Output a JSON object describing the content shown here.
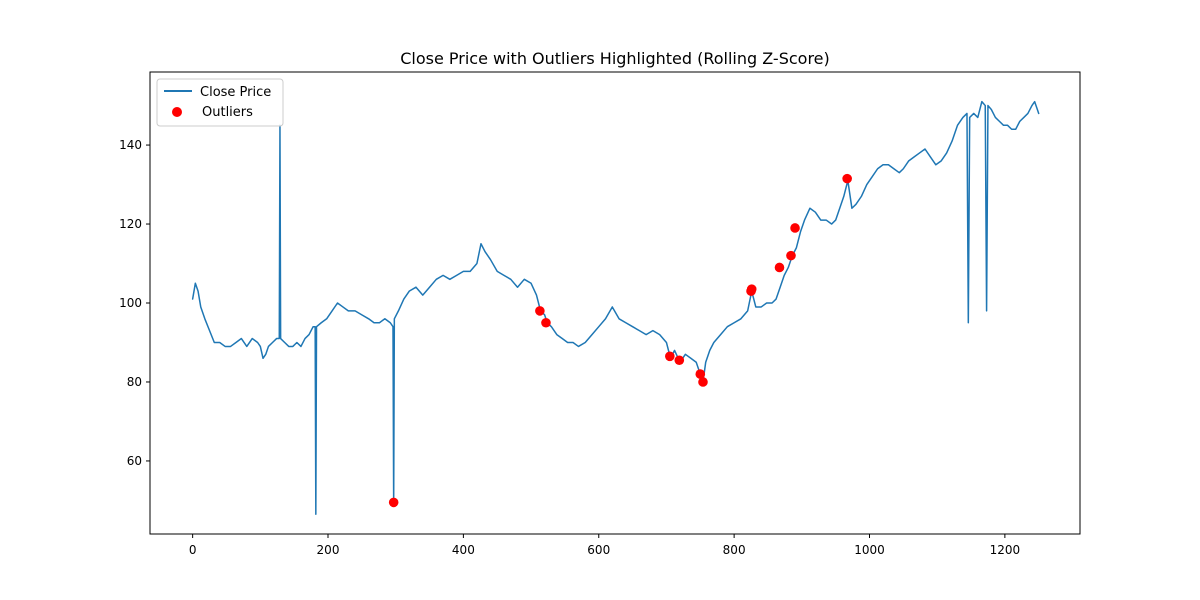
{
  "chart_data": {
    "type": "line",
    "title": "Close Price with Outliers Highlighted (Rolling Z-Score)",
    "xlabel": "",
    "ylabel": "",
    "xlim": [
      -63,
      1311
    ],
    "ylim": [
      41.5,
      158.5
    ],
    "x_ticks": [
      0,
      200,
      400,
      600,
      800,
      1000,
      1200
    ],
    "y_ticks": [
      60,
      80,
      100,
      120,
      140
    ],
    "grid": false,
    "legend_position": "top-left",
    "colors": {
      "line": "#1f77b4",
      "outlier": "#ff0000",
      "frame": "#000000"
    },
    "series": [
      {
        "name": "Close Price",
        "type": "line",
        "points": [
          [
            0,
            101
          ],
          [
            4,
            105
          ],
          [
            8,
            103
          ],
          [
            12,
            99
          ],
          [
            18,
            96
          ],
          [
            25,
            93
          ],
          [
            32,
            90
          ],
          [
            40,
            90
          ],
          [
            48,
            89
          ],
          [
            56,
            89
          ],
          [
            64,
            90
          ],
          [
            72,
            91
          ],
          [
            80,
            89
          ],
          [
            88,
            91
          ],
          [
            96,
            90
          ],
          [
            100,
            89
          ],
          [
            104,
            86
          ],
          [
            108,
            87
          ],
          [
            112,
            89
          ],
          [
            118,
            90
          ],
          [
            124,
            91
          ],
          [
            128,
            91
          ],
          [
            129,
            145
          ],
          [
            130,
            91
          ],
          [
            136,
            90
          ],
          [
            142,
            89
          ],
          [
            148,
            89
          ],
          [
            154,
            90
          ],
          [
            160,
            89
          ],
          [
            166,
            91
          ],
          [
            172,
            92
          ],
          [
            178,
            94
          ],
          [
            181,
            94
          ],
          [
            182,
            46.5
          ],
          [
            183,
            94
          ],
          [
            190,
            95
          ],
          [
            198,
            96
          ],
          [
            206,
            98
          ],
          [
            214,
            100
          ],
          [
            222,
            99
          ],
          [
            230,
            98
          ],
          [
            240,
            98
          ],
          [
            250,
            97
          ],
          [
            260,
            96
          ],
          [
            268,
            95
          ],
          [
            276,
            95
          ],
          [
            284,
            96
          ],
          [
            292,
            95
          ],
          [
            296,
            94
          ],
          [
            297,
            49
          ],
          [
            298,
            96
          ],
          [
            304,
            98
          ],
          [
            312,
            101
          ],
          [
            320,
            103
          ],
          [
            330,
            104
          ],
          [
            340,
            102
          ],
          [
            350,
            104
          ],
          [
            360,
            106
          ],
          [
            370,
            107
          ],
          [
            380,
            106
          ],
          [
            390,
            107
          ],
          [
            400,
            108
          ],
          [
            410,
            108
          ],
          [
            420,
            110
          ],
          [
            426,
            115
          ],
          [
            432,
            113
          ],
          [
            440,
            111
          ],
          [
            450,
            108
          ],
          [
            460,
            107
          ],
          [
            470,
            106
          ],
          [
            480,
            104
          ],
          [
            490,
            106
          ],
          [
            500,
            105
          ],
          [
            508,
            102
          ],
          [
            514,
            98
          ],
          [
            520,
            97
          ],
          [
            524,
            95
          ],
          [
            530,
            94
          ],
          [
            538,
            92
          ],
          [
            546,
            91
          ],
          [
            554,
            90
          ],
          [
            562,
            90
          ],
          [
            570,
            89
          ],
          [
            580,
            90
          ],
          [
            590,
            92
          ],
          [
            600,
            94
          ],
          [
            610,
            96
          ],
          [
            620,
            99
          ],
          [
            630,
            96
          ],
          [
            640,
            95
          ],
          [
            650,
            94
          ],
          [
            660,
            93
          ],
          [
            670,
            92
          ],
          [
            680,
            93
          ],
          [
            690,
            92
          ],
          [
            700,
            90
          ],
          [
            706,
            86
          ],
          [
            712,
            88
          ],
          [
            720,
            85
          ],
          [
            728,
            87
          ],
          [
            736,
            86
          ],
          [
            744,
            85
          ],
          [
            750,
            82
          ],
          [
            754,
            80
          ],
          [
            758,
            85
          ],
          [
            764,
            88
          ],
          [
            770,
            90
          ],
          [
            780,
            92
          ],
          [
            790,
            94
          ],
          [
            800,
            95
          ],
          [
            810,
            96
          ],
          [
            820,
            98
          ],
          [
            826,
            103
          ],
          [
            832,
            99
          ],
          [
            840,
            99
          ],
          [
            848,
            100
          ],
          [
            856,
            100
          ],
          [
            862,
            101
          ],
          [
            868,
            104
          ],
          [
            874,
            107
          ],
          [
            880,
            109
          ],
          [
            886,
            112
          ],
          [
            892,
            114
          ],
          [
            898,
            118
          ],
          [
            904,
            121
          ],
          [
            912,
            124
          ],
          [
            920,
            123
          ],
          [
            928,
            121
          ],
          [
            936,
            121
          ],
          [
            944,
            120
          ],
          [
            950,
            121
          ],
          [
            956,
            124
          ],
          [
            962,
            127
          ],
          [
            968,
            131
          ],
          [
            974,
            124
          ],
          [
            980,
            125
          ],
          [
            988,
            127
          ],
          [
            996,
            130
          ],
          [
            1004,
            132
          ],
          [
            1012,
            134
          ],
          [
            1020,
            135
          ],
          [
            1028,
            135
          ],
          [
            1036,
            134
          ],
          [
            1044,
            133
          ],
          [
            1050,
            134
          ],
          [
            1058,
            136
          ],
          [
            1066,
            137
          ],
          [
            1074,
            138
          ],
          [
            1082,
            139
          ],
          [
            1090,
            137
          ],
          [
            1098,
            135
          ],
          [
            1106,
            136
          ],
          [
            1114,
            138
          ],
          [
            1122,
            141
          ],
          [
            1130,
            145
          ],
          [
            1138,
            147
          ],
          [
            1144,
            148
          ],
          [
            1146,
            95
          ],
          [
            1148,
            147
          ],
          [
            1154,
            148
          ],
          [
            1160,
            147
          ],
          [
            1166,
            151
          ],
          [
            1171,
            150
          ],
          [
            1173,
            98
          ],
          [
            1175,
            150
          ],
          [
            1180,
            149
          ],
          [
            1186,
            147
          ],
          [
            1192,
            146
          ],
          [
            1198,
            145
          ],
          [
            1204,
            145
          ],
          [
            1210,
            144
          ],
          [
            1216,
            144
          ],
          [
            1222,
            146
          ],
          [
            1228,
            147
          ],
          [
            1234,
            148
          ],
          [
            1240,
            150
          ],
          [
            1244,
            151
          ],
          [
            1248,
            149
          ],
          [
            1250,
            148
          ]
        ]
      },
      {
        "name": "Outliers",
        "type": "scatter",
        "points": [
          [
            297,
            49.5
          ],
          [
            513,
            98
          ],
          [
            522,
            95
          ],
          [
            705,
            86.5
          ],
          [
            719,
            85.5
          ],
          [
            750,
            82
          ],
          [
            754,
            80
          ],
          [
            825,
            103
          ],
          [
            826,
            103.5
          ],
          [
            867,
            109
          ],
          [
            884,
            112
          ],
          [
            890,
            119
          ],
          [
            967,
            131.5
          ]
        ]
      }
    ]
  }
}
